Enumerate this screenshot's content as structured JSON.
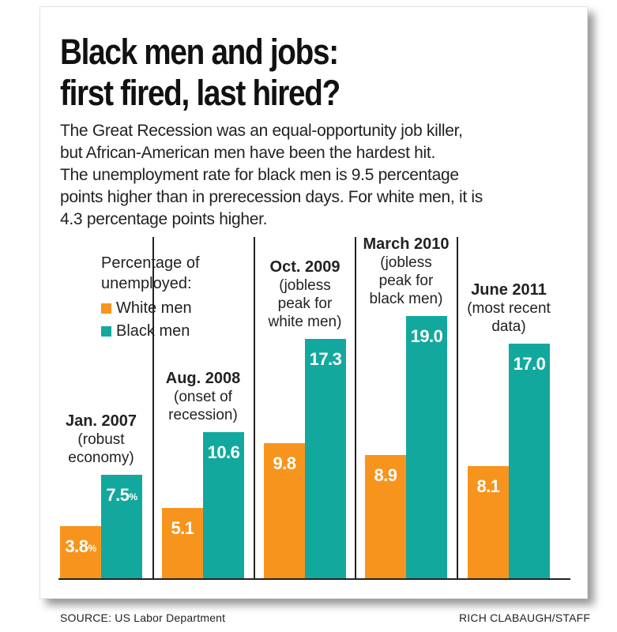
{
  "header": {
    "title_line1": "Black men and jobs:",
    "title_line2": "first fired, last hired?"
  },
  "intro": {
    "lines": [
      "The Great Recession was an equal-opportunity job killer,",
      "but African-American men have been the hardest hit.",
      "The unemployment rate for black men is 9.5 percentage",
      "points higher than in prerecession days. For white men, it is",
      "4.3 percentage points higher."
    ]
  },
  "legend": {
    "title_line1": "Percentage of",
    "title_line2": "unemployed:",
    "white_label": "White men",
    "black_label": "Black men"
  },
  "colors": {
    "white_men": "#f7941d",
    "black_men": "#13a89e"
  },
  "chart_data": {
    "type": "bar",
    "title": "Black men and jobs: first fired, last hired?",
    "xlabel": "",
    "ylabel": "Percentage of unemployed",
    "ylim": [
      0,
      20
    ],
    "grid": false,
    "legend_position": "top-left",
    "categories": [
      "Jan. 2007",
      "Aug. 2008",
      "Oct. 2009",
      "March 2010",
      "June 2011"
    ],
    "category_notes": [
      [
        "(robust",
        "economy)"
      ],
      [
        "(onset of",
        "recession)"
      ],
      [
        "(jobless",
        "peak for",
        "white men)"
      ],
      [
        "(jobless",
        "peak for",
        "black men)"
      ],
      [
        "(most recent",
        "data)"
      ]
    ],
    "series": [
      {
        "name": "White men",
        "values": [
          3.8,
          5.1,
          9.8,
          8.9,
          8.1
        ],
        "labels": [
          "3.8",
          "5.1",
          "9.8",
          "8.9",
          "8.1"
        ]
      },
      {
        "name": "Black men",
        "values": [
          7.5,
          10.6,
          17.3,
          19.0,
          17.0
        ],
        "labels": [
          "7.5",
          "10.6",
          "17.3",
          "19.0",
          "17.0"
        ]
      }
    ],
    "first_group_unit": "%"
  },
  "footer": {
    "source": "SOURCE: US Labor Department",
    "credit": "RICH CLABAUGH/STAFF"
  }
}
